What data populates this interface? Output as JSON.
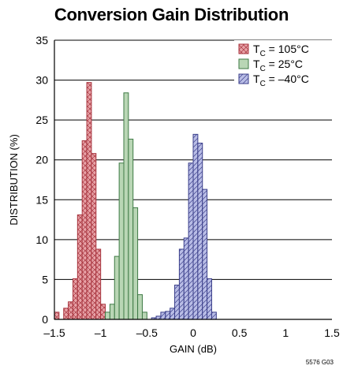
{
  "chart_data": {
    "type": "bar",
    "title": "Conversion Gain Distribution",
    "xlabel": "GAIN (dB)",
    "ylabel": "DISTRIBUTION (%)",
    "xlim": [
      -1.5,
      1.5
    ],
    "ylim": [
      0,
      35
    ],
    "x_ticks": [
      -1.5,
      -1,
      -0.5,
      0,
      0.5,
      1,
      1.5
    ],
    "x_tick_labels": [
      "–1.5",
      "–1",
      "–0.5",
      "0",
      "0.5",
      "1",
      "1.5"
    ],
    "y_ticks": [
      0,
      5,
      10,
      15,
      20,
      25,
      30,
      35
    ],
    "y_tick_labels": [
      "0",
      "5",
      "10",
      "15",
      "20",
      "25",
      "30",
      "35"
    ],
    "grid": "horizontal",
    "legend_position": "top-right",
    "bin_width": 0.05,
    "series": [
      {
        "name": "TC = 105°C",
        "legend_main": "T",
        "legend_sub": "C",
        "legend_rest": " = 105°C",
        "color": "#a8353f",
        "fill": "#e8a3a8",
        "hatch": "crosshatch",
        "x": [
          -1.475,
          -1.375,
          -1.325,
          -1.275,
          -1.225,
          -1.175,
          -1.125,
          -1.075,
          -1.025,
          -0.975
        ],
        "values": [
          0.9,
          1.4,
          2.2,
          5.1,
          13.1,
          22.4,
          29.7,
          20.8,
          8.8,
          1.9
        ]
      },
      {
        "name": "TC = 25°C",
        "legend_main": "T",
        "legend_sub": "C",
        "legend_rest": " = 25°C",
        "color": "#3e7a45",
        "fill": "#b9d6b5",
        "hatch": "none",
        "x": [
          -0.925,
          -0.875,
          -0.825,
          -0.775,
          -0.725,
          -0.675,
          -0.625,
          -0.575,
          -0.525
        ],
        "values": [
          0.9,
          1.9,
          7.9,
          19.6,
          28.4,
          22.6,
          14.0,
          3.1,
          0.9
        ]
      },
      {
        "name": "TC = –40°C",
        "legend_main": "T",
        "legend_sub": "C",
        "legend_rest": " = –40°C",
        "color": "#3a3e8a",
        "fill": "#b9bde6",
        "hatch": "diagonal",
        "x": [
          -0.425,
          -0.375,
          -0.325,
          -0.275,
          -0.225,
          -0.175,
          -0.125,
          -0.075,
          -0.025,
          0.025,
          0.075,
          0.125,
          0.175,
          0.225
        ],
        "values": [
          0.2,
          0.4,
          0.9,
          1.0,
          1.4,
          4.3,
          8.8,
          10.2,
          19.6,
          23.2,
          22.1,
          16.3,
          5.1,
          0.9
        ]
      }
    ]
  },
  "figure_code": "5576 G03"
}
